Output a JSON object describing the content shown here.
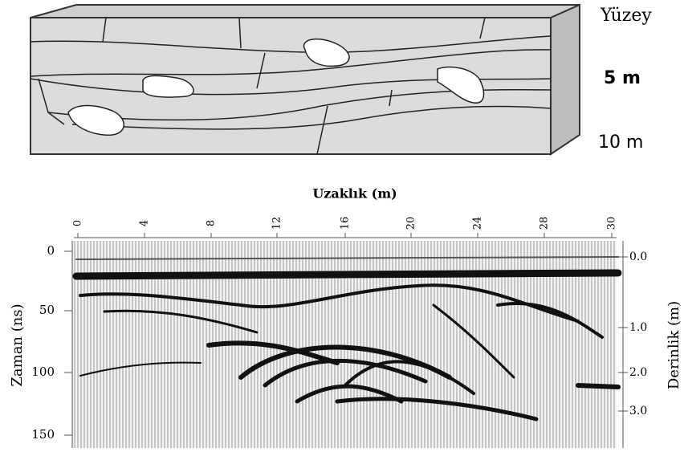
{
  "block": {
    "labels": [
      "Yüzey",
      "5 m",
      "10 m"
    ]
  },
  "radargram": {
    "title": "Uzaklık (m)",
    "top_ticks": [
      "0",
      "4",
      "8",
      "12",
      "16",
      "20",
      "24",
      "28",
      "30"
    ],
    "left_label": "Zaman (ns)",
    "left_ticks": [
      "0",
      "50",
      "100",
      "150"
    ],
    "right_label": "Derinlik (m)",
    "right_ticks": [
      "0.0",
      "1.0",
      "2.0",
      "3.0"
    ]
  }
}
